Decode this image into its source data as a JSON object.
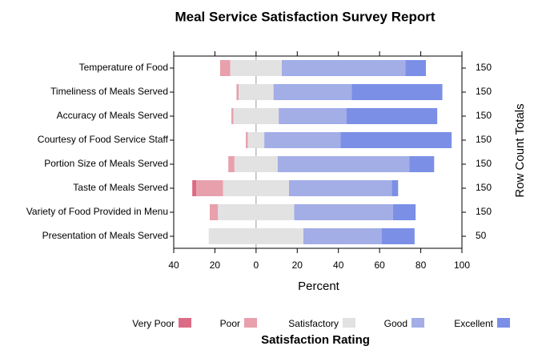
{
  "chart_data": {
    "type": "diverging-bar",
    "title": "Meal Service Satisfaction Survey Report",
    "categories": [
      "Temperature of Food",
      "Timeliness of Meals Served",
      "Accuracy of Meals Served",
      "Courtesy of Food Service Staff",
      "Portion Size of Meals Served",
      "Taste of Meals Served",
      "Variety of Food Provided in Menu",
      "Presentation of Meals Served"
    ],
    "series": [
      {
        "name": "Very Poor",
        "color": "#dc6b86",
        "values": [
          0,
          0,
          0,
          0,
          0,
          2,
          0,
          0
        ]
      },
      {
        "name": "Poor",
        "color": "#e8a0ad",
        "values": [
          5,
          1,
          1,
          1,
          3,
          13,
          4,
          0
        ]
      },
      {
        "name": "Satisfactory",
        "color": "#e2e2e2",
        "values": [
          25,
          17,
          22,
          8,
          21,
          32,
          37,
          46
        ]
      },
      {
        "name": "Good",
        "color": "#a3ade6",
        "values": [
          60,
          38,
          33,
          37,
          64,
          50,
          48,
          38
        ]
      },
      {
        "name": "Excellent",
        "color": "#7b8fe6",
        "values": [
          10,
          44,
          44,
          54,
          12,
          3,
          11,
          16
        ]
      }
    ],
    "row_totals": [
      150,
      150,
      150,
      150,
      150,
      150,
      150,
      50
    ],
    "row_totals_label": "Row Count Totals",
    "xlabel": "Percent",
    "legend_title": "Satisfaction Rating",
    "xlim": [
      -40,
      100
    ],
    "xticks": [
      {
        "value": -40,
        "label": "40"
      },
      {
        "value": -20,
        "label": "20"
      },
      0,
      20,
      40,
      60,
      80,
      100
    ]
  }
}
